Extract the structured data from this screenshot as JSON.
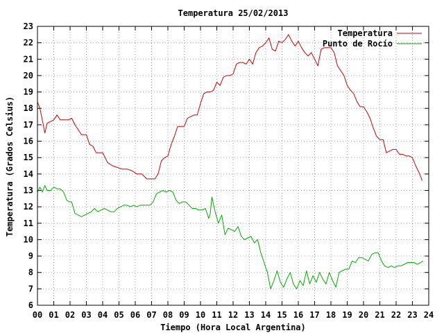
{
  "chart_data": {
    "type": "line",
    "title": "Temperatura 25/02/2013",
    "xlabel": "Tiempo (Hora Local Argentina)",
    "ylabel": "Temperatura (Grados Celsius)",
    "xlim": [
      0,
      24
    ],
    "ylim": [
      6,
      23
    ],
    "xticks": [
      "00",
      "01",
      "02",
      "03",
      "04",
      "05",
      "06",
      "07",
      "08",
      "09",
      "10",
      "11",
      "12",
      "13",
      "14",
      "15",
      "16",
      "17",
      "18",
      "19",
      "20",
      "21",
      "22",
      "23",
      "24"
    ],
    "yticks": [
      "6",
      "7",
      "8",
      "9",
      "10",
      "11",
      "12",
      "13",
      "14",
      "15",
      "16",
      "17",
      "18",
      "19",
      "20",
      "21",
      "22",
      "23"
    ],
    "grid": true,
    "legend_position": "top-right",
    "series": [
      {
        "name": "Temperatura",
        "color": "#cc0000",
        "x": [
          0,
          0.15,
          0.3,
          0.45,
          0.6,
          0.8,
          1.0,
          1.2,
          1.4,
          1.6,
          1.9,
          2.1,
          2.3,
          2.5,
          2.7,
          3.0,
          3.2,
          3.4,
          3.6,
          3.8,
          4.0,
          4.3,
          4.6,
          4.9,
          5.2,
          5.5,
          5.8,
          6.1,
          6.4,
          6.7,
          7.0,
          7.2,
          7.4,
          7.6,
          7.8,
          8.0,
          8.2,
          8.4,
          8.6,
          8.8,
          9.0,
          9.2,
          9.4,
          9.6,
          9.8,
          10.0,
          10.2,
          10.4,
          10.6,
          10.8,
          11.0,
          11.2,
          11.4,
          11.6,
          11.8,
          12.0,
          12.2,
          12.4,
          12.6,
          12.8,
          13.0,
          13.2,
          13.4,
          13.6,
          13.8,
          14.0,
          14.2,
          14.4,
          14.6,
          14.8,
          15.0,
          15.2,
          15.4,
          15.6,
          15.8,
          16.0,
          16.2,
          16.4,
          16.6,
          16.8,
          17.0,
          17.2,
          17.4,
          17.6,
          17.8,
          18.0,
          18.2,
          18.4,
          18.6,
          18.8,
          19.0,
          19.2,
          19.4,
          19.6,
          19.8,
          20.0,
          20.2,
          20.4,
          20.6,
          20.8,
          21.0,
          21.2,
          21.4,
          21.6,
          21.8,
          22.0,
          22.2,
          22.4,
          22.6,
          22.8,
          23.0,
          23.2,
          23.4,
          23.6
        ],
        "y": [
          18.4,
          18.0,
          17.3,
          16.5,
          17.1,
          17.2,
          17.3,
          17.6,
          17.3,
          17.3,
          17.3,
          17.4,
          17.0,
          16.7,
          16.4,
          16.4,
          15.8,
          15.7,
          15.3,
          15.3,
          15.3,
          14.7,
          14.5,
          14.4,
          14.3,
          14.3,
          14.2,
          14.0,
          14.0,
          13.7,
          13.7,
          13.7,
          14.0,
          14.8,
          15.0,
          15.1,
          15.8,
          16.3,
          16.9,
          16.9,
          16.9,
          17.4,
          17.5,
          17.6,
          17.6,
          18.3,
          18.9,
          19.0,
          19.0,
          19.1,
          19.6,
          19.4,
          19.9,
          20.0,
          20.0,
          20.1,
          20.7,
          20.8,
          20.8,
          20.7,
          21.0,
          20.7,
          21.4,
          21.7,
          21.8,
          22.0,
          22.3,
          21.6,
          21.5,
          22.1,
          22.0,
          22.2,
          22.5,
          22.1,
          21.8,
          22.1,
          21.7,
          21.4,
          21.2,
          21.4,
          21.0,
          20.6,
          21.6,
          21.7,
          21.7,
          21.7,
          21.4,
          20.6,
          20.3,
          20.0,
          19.4,
          19.1,
          18.9,
          18.4,
          18.1,
          18.1,
          17.8,
          17.4,
          16.8,
          16.3,
          16.1,
          16.1,
          15.3,
          15.4,
          15.5,
          15.5,
          15.2,
          15.2,
          15.1,
          15.1,
          15.0,
          14.5,
          14.1,
          13.6
        ]
      },
      {
        "name": "Punto de Rocío",
        "color": "#00aa00",
        "x": [
          0,
          0.15,
          0.3,
          0.45,
          0.6,
          0.8,
          1.0,
          1.2,
          1.4,
          1.6,
          1.8,
          1.95,
          2.1,
          2.3,
          2.5,
          2.7,
          2.9,
          3.1,
          3.3,
          3.5,
          3.7,
          3.9,
          4.1,
          4.3,
          4.5,
          4.7,
          4.9,
          5.1,
          5.3,
          5.5,
          5.7,
          5.9,
          6.1,
          6.3,
          6.5,
          6.7,
          6.9,
          7.1,
          7.3,
          7.5,
          7.7,
          7.9,
          8.1,
          8.3,
          8.5,
          8.7,
          8.9,
          9.1,
          9.3,
          9.5,
          9.7,
          9.9,
          10.1,
          10.3,
          10.5,
          10.6,
          10.7,
          10.9,
          11.1,
          11.3,
          11.5,
          11.7,
          11.9,
          12.1,
          12.3,
          12.5,
          12.7,
          12.9,
          13.1,
          13.3,
          13.5,
          13.7,
          13.9,
          14.1,
          14.3,
          14.5,
          14.7,
          14.9,
          15.1,
          15.3,
          15.5,
          15.7,
          15.9,
          16.1,
          16.3,
          16.5,
          16.7,
          16.9,
          17.1,
          17.3,
          17.5,
          17.7,
          17.9,
          18.1,
          18.3,
          18.5,
          18.7,
          18.9,
          19.1,
          19.3,
          19.5,
          19.7,
          19.9,
          20.1,
          20.3,
          20.5,
          20.7,
          20.9,
          21.1,
          21.3,
          21.5,
          21.7,
          21.9,
          22.1,
          22.3,
          22.5,
          22.7,
          22.9,
          23.1,
          23.3,
          23.5,
          23.65
        ],
        "y": [
          12.9,
          13.2,
          12.9,
          13.3,
          13.0,
          13.0,
          13.2,
          13.1,
          13.1,
          12.9,
          12.4,
          12.3,
          12.3,
          11.6,
          11.5,
          11.4,
          11.5,
          11.6,
          11.7,
          11.9,
          11.7,
          11.8,
          11.9,
          11.8,
          11.7,
          11.7,
          11.9,
          12.0,
          12.1,
          12.1,
          12.0,
          12.1,
          12.0,
          12.1,
          12.1,
          12.1,
          12.1,
          12.3,
          12.8,
          12.9,
          13.0,
          12.9,
          13.0,
          12.9,
          12.4,
          12.2,
          12.3,
          12.3,
          12.1,
          11.9,
          11.9,
          11.8,
          11.8,
          11.9,
          11.3,
          11.6,
          12.6,
          11.7,
          11.0,
          11.5,
          10.3,
          10.7,
          10.6,
          10.5,
          10.8,
          10.2,
          10.0,
          10.1,
          10.2,
          9.8,
          10.0,
          9.2,
          8.6,
          8.0,
          7.0,
          7.5,
          8.1,
          7.4,
          7.1,
          7.6,
          8.0,
          7.3,
          7.0,
          7.5,
          7.2,
          8.1,
          7.3,
          7.8,
          7.4,
          8.0,
          7.6,
          7.3,
          8.0,
          7.5,
          7.1,
          8.0,
          8.1,
          8.2,
          8.2,
          8.7,
          8.6,
          8.9,
          8.9,
          8.8,
          8.7,
          9.1,
          9.2,
          9.2,
          8.7,
          8.4,
          8.3,
          8.4,
          8.3,
          8.4,
          8.4,
          8.5,
          8.6,
          8.6,
          8.6,
          8.5,
          8.6,
          8.7
        ]
      }
    ]
  }
}
